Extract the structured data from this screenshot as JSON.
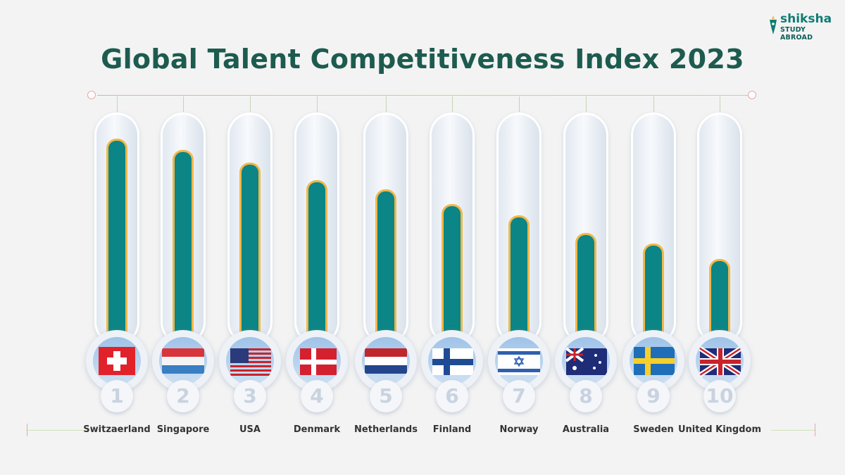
{
  "title": "Global Talent Competitiveness Index 2023",
  "logo": {
    "name": "shiksha",
    "tagline": "STUDY ABROAD"
  },
  "colors": {
    "bar": "#0b8585",
    "bar_border": "#f0b84a",
    "title": "#1d5b4f",
    "background": "#f3f3f3"
  },
  "chart_data": {
    "type": "bar",
    "title": "Global Talent Competitiveness Index 2023",
    "categories": [
      "Switzaerland",
      "Singapore",
      "USA",
      "Denmark",
      "Netherlands",
      "Finland",
      "Norway",
      "Australia",
      "Sweden",
      "United Kingdom"
    ],
    "ranks": [
      "1",
      "2",
      "3",
      "4",
      "5",
      "6",
      "7",
      "8",
      "9",
      "10"
    ],
    "flag_icons": [
      "flag-switzerland",
      "flag-singapore",
      "flag-usa",
      "flag-denmark",
      "flag-netherlands",
      "flag-finland",
      "flag-norway",
      "flag-australia",
      "flag-sweden",
      "flag-united-kingdom"
    ],
    "relative_fill": [
      0.88,
      0.83,
      0.77,
      0.69,
      0.65,
      0.58,
      0.53,
      0.45,
      0.4,
      0.33
    ],
    "grid": false
  }
}
